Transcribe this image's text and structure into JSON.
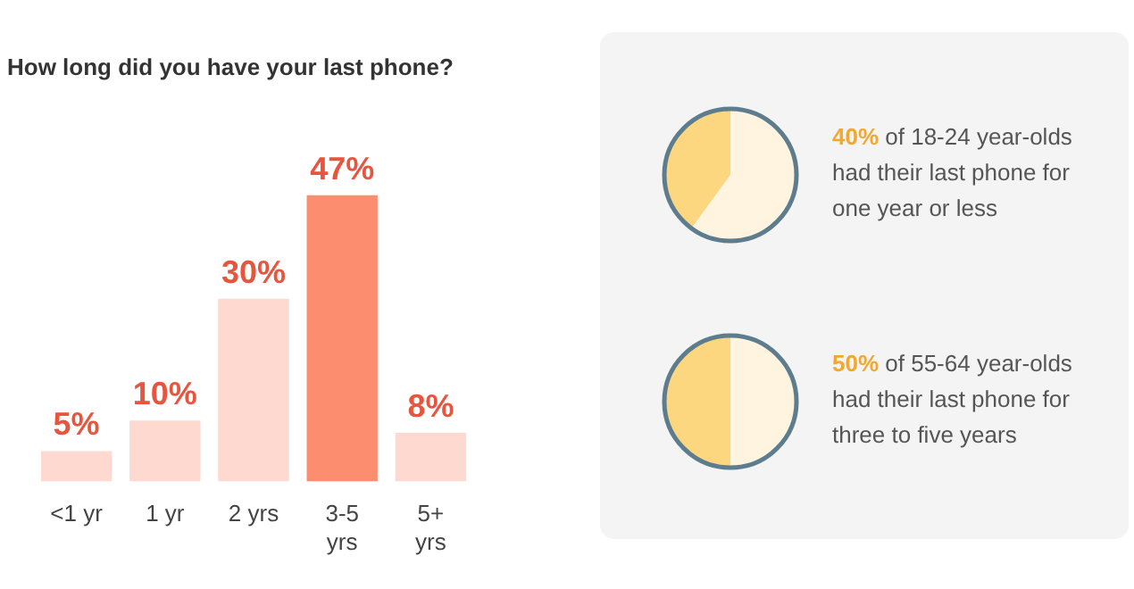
{
  "chart_data": [
    {
      "type": "bar",
      "title": "How long did you have your last phone?",
      "categories": [
        "<1 yr",
        "1 yr",
        "2 yrs",
        "3-5 yrs",
        "5+ yrs"
      ],
      "values": [
        5,
        10,
        30,
        47,
        8
      ],
      "colors": [
        "#fdd9cf",
        "#fdd9cf",
        "#fdd9cf",
        "#fc8d6e",
        "#fdd9cf"
      ],
      "value_labels": [
        "5%",
        "10%",
        "30%",
        "47%",
        "8%"
      ]
    },
    {
      "type": "pie",
      "categories": [
        null,
        null
      ],
      "values": [
        40,
        60
      ],
      "colors": [
        "#fdd680",
        "#fff4e0"
      ],
      "annotations": [
        "40% of 18-24 year-olds had their last phone for one year or less"
      ]
    },
    {
      "type": "pie",
      "categories": [
        null,
        null
      ],
      "values": [
        50,
        50
      ],
      "colors": [
        "#fdd680",
        "#fff4e0"
      ],
      "annotations": [
        "50% of 55-64 year-olds had their last phone for three to five years"
      ]
    }
  ]
}
